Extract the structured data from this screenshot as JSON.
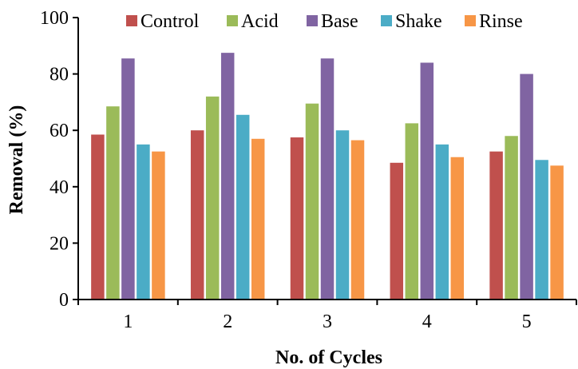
{
  "chart_data": {
    "type": "bar",
    "xlabel": "No. of Cycles",
    "ylabel": "Removal (%)",
    "categories": [
      "1",
      "2",
      "3",
      "4",
      "5"
    ],
    "ylim": [
      0,
      100
    ],
    "yticks": [
      0,
      20,
      40,
      60,
      80,
      100
    ],
    "grid": false,
    "legend_position": "top",
    "series": [
      {
        "name": "Control",
        "color": "#C0504D",
        "values": [
          58.5,
          60,
          57.5,
          48.5,
          52.5
        ]
      },
      {
        "name": "Acid",
        "color": "#9BBB59",
        "values": [
          68.5,
          72,
          69.5,
          62.5,
          58
        ]
      },
      {
        "name": "Base",
        "color": "#8064A2",
        "values": [
          85.5,
          87.5,
          85.5,
          84,
          80
        ]
      },
      {
        "name": "Shake",
        "color": "#4BACC6",
        "values": [
          55,
          65.5,
          60,
          55,
          49.5
        ]
      },
      {
        "name": "Rinse",
        "color": "#F79646",
        "values": [
          52.5,
          57,
          56.5,
          50.5,
          47.5
        ]
      }
    ]
  }
}
